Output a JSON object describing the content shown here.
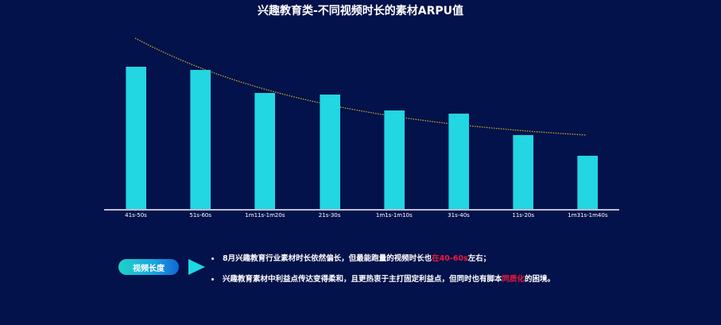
{
  "title": "兴趣教育类-不同视频时长的素材ARPU值",
  "chart_data": {
    "type": "bar",
    "title": "兴趣教育类-不同视频时长的素材ARPU值",
    "xlabel": "",
    "ylabel": "",
    "y_axis_visible": false,
    "grid": false,
    "legend": null,
    "value_unit": "relative bar height (no y-axis scale shown)",
    "categories": [
      "41s-50s",
      "51s-60s",
      "1m11s-1m20s",
      "21s-30s",
      "1m1s-1m10s",
      "31s-40s",
      "11s-20s",
      "1m31s-1m40s"
    ],
    "values": [
      179,
      175,
      146,
      144,
      124,
      120,
      93,
      67
    ],
    "ylim": [
      0,
      200
    ],
    "series_color": "#22d6e2",
    "trendline": {
      "style": "dotted",
      "color": "#c8a82a",
      "kind": "decreasing curve",
      "start_value": 215,
      "end_value": 93
    }
  },
  "summary": {
    "tag_label": "视频长度",
    "bullets": [
      {
        "parts": [
          {
            "text": "8月兴趣教育行业素材时长依然偏长，但最能跑量的视频时长也",
            "highlight": false
          },
          {
            "text": "在40-60s",
            "highlight": true
          },
          {
            "text": "左右；",
            "highlight": false
          }
        ]
      },
      {
        "parts": [
          {
            "text": "兴趣教育素材中利益点传达变得柔和，且更热衷于主打固定利益点，但同时也有脚本",
            "highlight": false
          },
          {
            "text": "同质化",
            "highlight": true
          },
          {
            "text": "的困境。",
            "highlight": false
          }
        ]
      }
    ],
    "highlight_color": "#f0183c"
  },
  "colors": {
    "background": "#03124a",
    "bar": "#22d6e2",
    "axis": "#b9bfd4",
    "trendline": "#c8a82a"
  }
}
